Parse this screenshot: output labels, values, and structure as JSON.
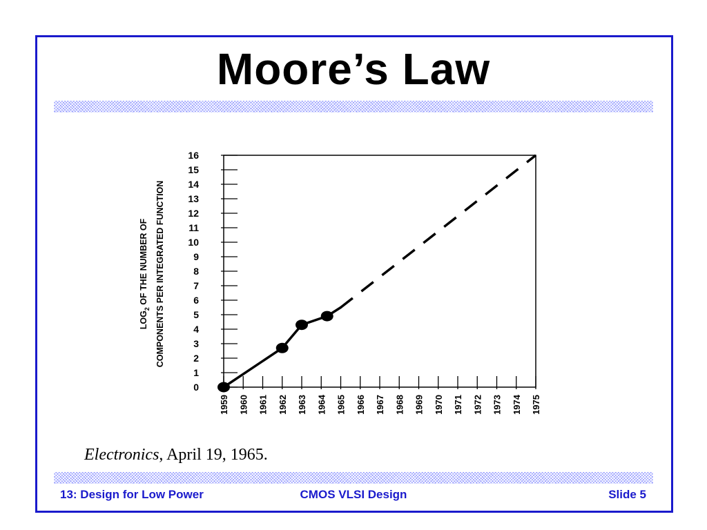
{
  "slide": {
    "title": "Moore’s Law",
    "source_italic": "Electronics",
    "source_rest": ", April 19, 1965.",
    "footer_left": "13: Design for Low Power",
    "footer_center": "CMOS VLSI Design",
    "footer_right": "Slide 5",
    "accent_color": "#1a1acc"
  },
  "chart_data": {
    "type": "line",
    "title": "",
    "ylabel_line1_prefix": "LOG",
    "ylabel_line1_sub": "2",
    "ylabel_line1_suffix": " OF THE NUMBER OF",
    "ylabel_line2": "COMPONENTS PER INTEGRATED FUNCTION",
    "xlabel": "",
    "xlim": [
      1959,
      1975
    ],
    "ylim": [
      0,
      16
    ],
    "x_ticks": [
      "1959",
      "1960",
      "1961",
      "1962",
      "1963",
      "1964",
      "1965",
      "1966",
      "1967",
      "1968",
      "1969",
      "1970",
      "1971",
      "1972",
      "1973",
      "1974",
      "1975"
    ],
    "y_ticks": [
      "0",
      "1",
      "2",
      "3",
      "4",
      "5",
      "6",
      "7",
      "8",
      "9",
      "10",
      "11",
      "12",
      "13",
      "14",
      "15",
      "16"
    ],
    "grid": false,
    "series": [
      {
        "style": "solid",
        "points": [
          {
            "x": 1959,
            "y": 0
          },
          {
            "x": 1962,
            "y": 2.7
          },
          {
            "x": 1963,
            "y": 4.3
          },
          {
            "x": 1964.3,
            "y": 4.9
          },
          {
            "x": 1965,
            "y": 5.5
          }
        ],
        "markers": [
          0,
          1,
          2,
          3
        ]
      },
      {
        "style": "dashed",
        "points": [
          {
            "x": 1965,
            "y": 5.5
          },
          {
            "x": 1975,
            "y": 16
          }
        ]
      }
    ]
  }
}
